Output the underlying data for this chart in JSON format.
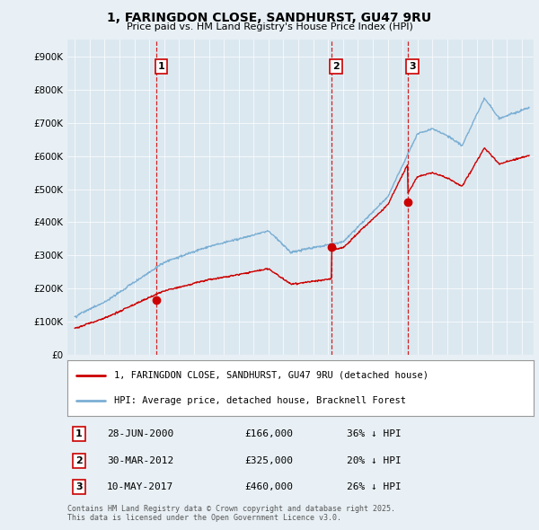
{
  "title": "1, FARINGDON CLOSE, SANDHURST, GU47 9RU",
  "subtitle": "Price paid vs. HM Land Registry's House Price Index (HPI)",
  "background_color": "#e8f0f5",
  "plot_bg_color": "#dce8f0",
  "legend_line1": "1, FARINGDON CLOSE, SANDHURST, GU47 9RU (detached house)",
  "legend_line2": "HPI: Average price, detached house, Bracknell Forest",
  "red_color": "#cc0000",
  "blue_color": "#7bafd4",
  "transactions": [
    {
      "label": "1",
      "date": 2000.49,
      "price": 166000,
      "note": "28-JUN-2000",
      "price_str": "£166,000",
      "hpi_diff": "36% ↓ HPI"
    },
    {
      "label": "2",
      "date": 2012.24,
      "price": 325000,
      "note": "30-MAR-2012",
      "price_str": "£325,000",
      "hpi_diff": "20% ↓ HPI"
    },
    {
      "label": "3",
      "date": 2017.36,
      "price": 460000,
      "note": "10-MAY-2017",
      "price_str": "£460,000",
      "hpi_diff": "26% ↓ HPI"
    }
  ],
  "footer": "Contains HM Land Registry data © Crown copyright and database right 2025.\nThis data is licensed under the Open Government Licence v3.0.",
  "ylim": [
    0,
    950000
  ],
  "xlim_start": 1994.5,
  "xlim_end": 2025.8
}
